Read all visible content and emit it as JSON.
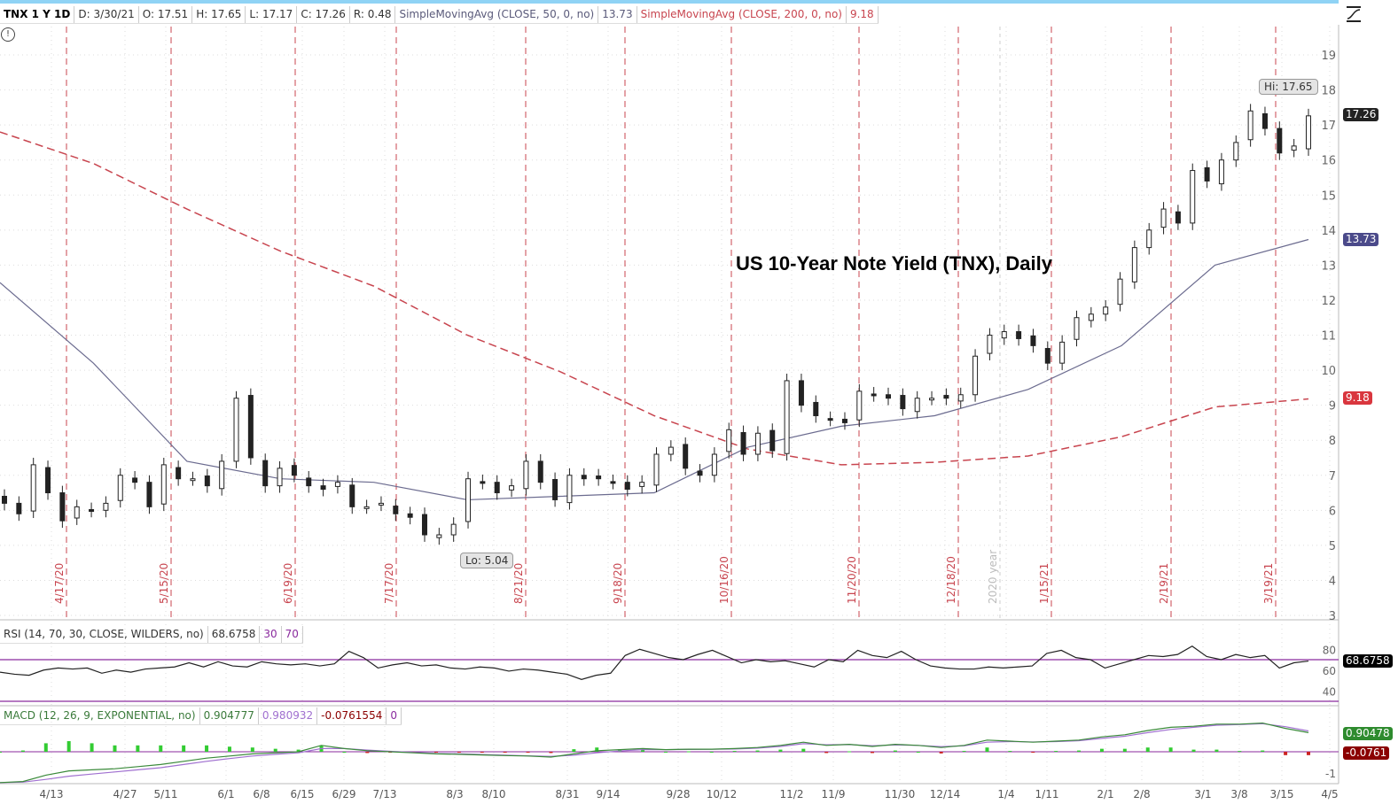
{
  "header": {
    "symbol": "TNX 1 Y 1D",
    "date": "D: 3/30/21",
    "open": "O: 17.51",
    "high": "H: 17.65",
    "low": "L: 17.17",
    "close": "C: 17.26",
    "range": "R: 0.48",
    "sma50_label": "SimpleMovingAvg (CLOSE, 50, 0, no)",
    "sma50_value": "13.73",
    "sma200_label": "SimpleMovingAvg (CLOSE, 200, 0, no)",
    "sma200_value": "9.18"
  },
  "rsi_header": {
    "label": "RSI (14, 70, 30, CLOSE, WILDERS, no)",
    "value": "68.6758",
    "oversold": "30",
    "overbought": "70"
  },
  "macd_header": {
    "label": "MACD (12, 26, 9, EXPONENTIAL, no)",
    "value": "0.904777",
    "avg": "0.980932",
    "diff": "-0.0761554",
    "zero": "0"
  },
  "badges": {
    "last": "17.26",
    "sma50": "13.73",
    "sma200": "9.18",
    "rsi": "68.6758",
    "macd": "0.90478",
    "diff": "-0.0761"
  },
  "callouts": {
    "hi": "Hi: 17.65",
    "lo": "Lo: 5.04"
  },
  "icons": {
    "info": "info-icon",
    "study": "trend-line-icon"
  },
  "colors": {
    "up": "#ffffff",
    "down": "#222222",
    "sma50": "#6b6b8f",
    "sma200": "#c8454f",
    "rsi": "#222222",
    "rsi_bands": "#8a2a9e",
    "macd": "#3a8a3a",
    "macd_avg": "#a070d0",
    "hist_up": "#33cc33",
    "hist_down": "#cc2222",
    "badge_last": "#222222",
    "badge_sma50": "#4b4a8a",
    "badge_sma200": "#d9363e",
    "badge_rsi": "#000000",
    "badge_macd": "#2e8b2e",
    "badge_diff": "#8b0000"
  },
  "chart_data": {
    "type": "candlestick",
    "title": "US 10-Year Note Yield (TNX), Daily",
    "y_ticks": [
      3,
      4,
      5,
      6,
      7,
      8,
      9,
      10,
      11,
      12,
      13,
      14,
      15,
      16,
      17,
      18,
      19
    ],
    "ylim": [
      3,
      19
    ],
    "x_ticks": [
      "4/13",
      "4/27",
      "5/11",
      "6/1",
      "6/8",
      "6/15",
      "6/29",
      "7/13",
      "8/3",
      "8/10",
      "8/31",
      "9/14",
      "9/28",
      "10/12",
      "11/2",
      "11/9",
      "11/30",
      "12/14",
      "1/4",
      "1/11",
      "2/1",
      "2/8",
      "3/1",
      "3/8",
      "3/15",
      "4/5"
    ],
    "expiration_markers": [
      "4/17/20",
      "5/15/20",
      "6/19/20",
      "7/17/20",
      "8/21/20",
      "9/18/20",
      "10/16/20",
      "11/20/20",
      "12/18/20",
      "1/15/21",
      "2/19/21",
      "3/19/21"
    ],
    "year_marker": "2020 year",
    "closes": [
      6.2,
      5.9,
      7.3,
      6.5,
      5.7,
      6.1,
      6.0,
      6.2,
      7.0,
      6.8,
      6.1,
      7.3,
      6.9,
      6.9,
      6.7,
      7.4,
      9.2,
      7.5,
      6.7,
      7.2,
      7.0,
      6.7,
      6.6,
      6.8,
      6.1,
      6.1,
      6.2,
      5.9,
      5.8,
      5.3,
      5.3,
      5.6,
      6.9,
      6.8,
      6.5,
      6.7,
      7.4,
      6.8,
      6.3,
      7.0,
      6.9,
      6.9,
      6.8,
      6.6,
      6.8,
      7.6,
      7.8,
      7.2,
      7.0,
      7.6,
      8.3,
      7.6,
      8.2,
      7.7,
      9.7,
      9.0,
      8.7,
      8.6,
      8.5,
      9.4,
      9.3,
      9.2,
      8.9,
      9.2,
      9.2,
      9.2,
      9.3,
      10.4,
      11.0,
      11.1,
      10.9,
      10.7,
      10.2,
      10.8,
      11.5,
      11.6,
      11.8,
      12.6,
      13.5,
      14.0,
      14.6,
      14.2,
      15.7,
      15.4,
      16.0,
      16.5,
      17.4,
      16.9,
      16.2,
      16.4,
      17.26
    ],
    "sma50": [
      12.5,
      10.2,
      7.4,
      6.9,
      6.8,
      6.3,
      6.4,
      6.5,
      7.8,
      8.4,
      8.7,
      9.45,
      10.7,
      13.0,
      13.73
    ],
    "sma200": [
      16.8,
      15.9,
      14.6,
      13.4,
      12.4,
      11.0,
      9.95,
      8.7,
      7.75,
      7.3,
      7.37,
      7.55,
      8.1,
      8.95,
      9.18
    ],
    "high": 17.65,
    "low": 5.04,
    "last": 17.26,
    "rsi": {
      "ylim": [
        30,
        80
      ],
      "y_ticks": [
        40,
        60,
        80
      ],
      "bands": [
        30,
        70
      ],
      "values": [
        58,
        56,
        55,
        60,
        62,
        61,
        62,
        57,
        60,
        58,
        61,
        62,
        63,
        67,
        63,
        68,
        64,
        63,
        68,
        66,
        65,
        66,
        64,
        66,
        78,
        72,
        62,
        65,
        67,
        64,
        65,
        62,
        61,
        63,
        62,
        59,
        61,
        60,
        58,
        56,
        51,
        55,
        57,
        74,
        80,
        76,
        72,
        70,
        75,
        79,
        73,
        67,
        70,
        68,
        69,
        66,
        63,
        70,
        68,
        79,
        74,
        72,
        78,
        70,
        64,
        62,
        61,
        61,
        63,
        62,
        63,
        64,
        76,
        79,
        72,
        70,
        62,
        66,
        70,
        74,
        73,
        75,
        83,
        73,
        70,
        75,
        72,
        74,
        62,
        67,
        68.68
      ]
    },
    "macd": {
      "y_ticks": [
        -1
      ],
      "values": [
        -1.45,
        -1.4,
        -1.1,
        -0.9,
        -0.85,
        -0.8,
        -0.7,
        -0.6,
        -0.45,
        -0.3,
        -0.2,
        -0.1,
        -0.05,
        0.0,
        0.3,
        0.15,
        0.05,
        0.0,
        -0.05,
        -0.1,
        -0.12,
        -0.15,
        -0.18,
        -0.2,
        -0.25,
        -0.1,
        0.05,
        0.1,
        0.15,
        0.1,
        0.12,
        0.12,
        0.15,
        0.2,
        0.3,
        0.45,
        0.3,
        0.35,
        0.25,
        0.35,
        0.3,
        0.2,
        0.3,
        0.55,
        0.5,
        0.45,
        0.5,
        0.55,
        0.7,
        0.8,
        1.0,
        1.15,
        1.2,
        1.3,
        1.3,
        1.35,
        1.1,
        0.9
      ],
      "avg": [
        -1.45,
        -1.43,
        -1.3,
        -1.15,
        -1.05,
        -0.95,
        -0.85,
        -0.75,
        -0.6,
        -0.45,
        -0.32,
        -0.2,
        -0.12,
        -0.05,
        0.15,
        0.15,
        0.08,
        0.02,
        -0.03,
        -0.08,
        -0.1,
        -0.13,
        -0.16,
        -0.19,
        -0.22,
        -0.16,
        -0.05,
        0.04,
        0.1,
        0.1,
        0.11,
        0.12,
        0.13,
        0.17,
        0.25,
        0.38,
        0.33,
        0.34,
        0.28,
        0.32,
        0.3,
        0.24,
        0.28,
        0.45,
        0.48,
        0.46,
        0.48,
        0.52,
        0.63,
        0.73,
        0.9,
        1.05,
        1.15,
        1.25,
        1.28,
        1.32,
        1.18,
        0.98
      ]
    }
  }
}
